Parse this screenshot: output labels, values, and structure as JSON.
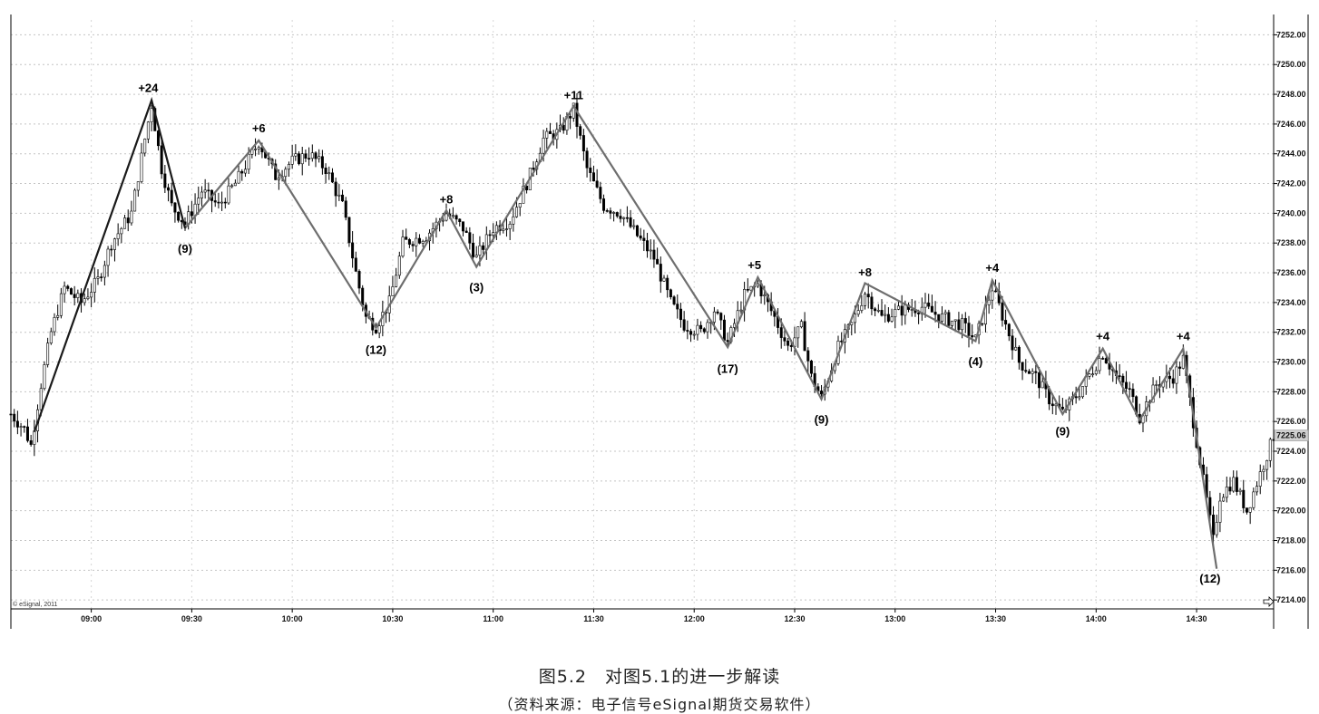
{
  "chart_data": {
    "type": "candlestick",
    "watermark": "© eSignal, 2011",
    "ylim": [
      7213.4,
      7253.0
    ],
    "y_ticks": [
      "7252.00",
      "7250.00",
      "7248.00",
      "7246.00",
      "7244.00",
      "7242.00",
      "7240.00",
      "7238.00",
      "7236.00",
      "7234.00",
      "7232.00",
      "7230.00",
      "7228.00",
      "7226.00",
      "7224.00",
      "7222.00",
      "7220.00",
      "7218.00",
      "7216.00",
      "7214.00"
    ],
    "last_price": "7225.06",
    "x_ticks": [
      "09:00",
      "09:30",
      "10:00",
      "10:30",
      "11:00",
      "11:30",
      "12:00",
      "12:30",
      "13:00",
      "13:30",
      "14:00",
      "14:30"
    ],
    "session_start": "08:36",
    "session_end": "14:53",
    "zigzag_dark": [
      {
        "t": "08:43",
        "p": 7225.3
      },
      {
        "t": "09:18",
        "p": 7247.6
      },
      {
        "t": "09:28",
        "p": 7239.0
      }
    ],
    "zigzag_gray": [
      {
        "t": "09:28",
        "p": 7239.0
      },
      {
        "t": "09:50",
        "p": 7244.9
      },
      {
        "t": "10:25",
        "p": 7232.3
      },
      {
        "t": "10:46",
        "p": 7240.2
      },
      {
        "t": "10:55",
        "p": 7236.4
      },
      {
        "t": "11:24",
        "p": 7247.2
      },
      {
        "t": "12:10",
        "p": 7231.0
      },
      {
        "t": "12:19",
        "p": 7235.7
      },
      {
        "t": "12:38",
        "p": 7227.5
      },
      {
        "t": "12:51",
        "p": 7235.3
      },
      {
        "t": "13:24",
        "p": 7231.4
      },
      {
        "t": "13:29",
        "p": 7235.5
      },
      {
        "t": "13:50",
        "p": 7226.5
      },
      {
        "t": "14:02",
        "p": 7230.9
      },
      {
        "t": "14:13",
        "p": 7226.1
      },
      {
        "t": "14:26",
        "p": 7230.9
      },
      {
        "t": "14:36",
        "p": 7216.1
      }
    ],
    "wave_labels": [
      {
        "text": "+24",
        "t": "09:17",
        "p": 7248.4
      },
      {
        "text": "(9)",
        "t": "09:28",
        "p": 7237.6
      },
      {
        "text": "+6",
        "t": "09:50",
        "p": 7245.7
      },
      {
        "text": "(12)",
        "t": "10:25",
        "p": 7230.8
      },
      {
        "text": "+8",
        "t": "10:46",
        "p": 7240.9
      },
      {
        "text": "(3)",
        "t": "10:55",
        "p": 7235.0
      },
      {
        "text": "+11",
        "t": "11:24",
        "p": 7247.9
      },
      {
        "text": "(17)",
        "t": "12:10",
        "p": 7229.5
      },
      {
        "text": "+5",
        "t": "12:18",
        "p": 7236.5
      },
      {
        "text": "(9)",
        "t": "12:38",
        "p": 7226.1
      },
      {
        "text": "+8",
        "t": "12:51",
        "p": 7236.0
      },
      {
        "text": "(4)",
        "t": "13:24",
        "p": 7230.0
      },
      {
        "text": "+4",
        "t": "13:29",
        "p": 7236.3
      },
      {
        "text": "(9)",
        "t": "13:50",
        "p": 7225.3
      },
      {
        "text": "+4",
        "t": "14:02",
        "p": 7231.7
      },
      {
        "text": "+4",
        "t": "14:26",
        "p": 7231.7
      },
      {
        "text": "(12)",
        "t": "14:34",
        "p": 7215.4
      }
    ],
    "price_path": [
      {
        "t": "08:36",
        "p": 7226.5
      },
      {
        "t": "08:40",
        "p": 7225.5
      },
      {
        "t": "08:42",
        "p": 7224.4
      },
      {
        "t": "08:45",
        "p": 7228.5
      },
      {
        "t": "08:48",
        "p": 7232.0
      },
      {
        "t": "08:52",
        "p": 7235.0
      },
      {
        "t": "08:57",
        "p": 7234.0
      },
      {
        "t": "09:02",
        "p": 7235.5
      },
      {
        "t": "09:06",
        "p": 7238.0
      },
      {
        "t": "09:12",
        "p": 7240.0
      },
      {
        "t": "09:16",
        "p": 7245.0
      },
      {
        "t": "09:18",
        "p": 7247.3
      },
      {
        "t": "09:21",
        "p": 7243.0
      },
      {
        "t": "09:24",
        "p": 7240.5
      },
      {
        "t": "09:28",
        "p": 7239.3
      },
      {
        "t": "09:33",
        "p": 7241.5
      },
      {
        "t": "09:38",
        "p": 7240.5
      },
      {
        "t": "09:43",
        "p": 7242.0
      },
      {
        "t": "09:50",
        "p": 7244.8
      },
      {
        "t": "09:55",
        "p": 7242.5
      },
      {
        "t": "10:00",
        "p": 7243.5
      },
      {
        "t": "10:05",
        "p": 7244.0
      },
      {
        "t": "10:10",
        "p": 7243.0
      },
      {
        "t": "10:15",
        "p": 7240.5
      },
      {
        "t": "10:19",
        "p": 7236.0
      },
      {
        "t": "10:22",
        "p": 7233.0
      },
      {
        "t": "10:25",
        "p": 7232.4
      },
      {
        "t": "10:29",
        "p": 7234.0
      },
      {
        "t": "10:33",
        "p": 7238.0
      },
      {
        "t": "10:40",
        "p": 7238.5
      },
      {
        "t": "10:46",
        "p": 7240.0
      },
      {
        "t": "10:51",
        "p": 7239.0
      },
      {
        "t": "10:55",
        "p": 7237.0
      },
      {
        "t": "11:00",
        "p": 7239.0
      },
      {
        "t": "11:05",
        "p": 7239.5
      },
      {
        "t": "11:10",
        "p": 7242.0
      },
      {
        "t": "11:15",
        "p": 7245.0
      },
      {
        "t": "11:20",
        "p": 7245.5
      },
      {
        "t": "11:24",
        "p": 7247.0
      },
      {
        "t": "11:28",
        "p": 7243.0
      },
      {
        "t": "11:33",
        "p": 7240.5
      },
      {
        "t": "11:38",
        "p": 7240.0
      },
      {
        "t": "11:43",
        "p": 7238.5
      },
      {
        "t": "11:48",
        "p": 7237.0
      },
      {
        "t": "11:53",
        "p": 7234.0
      },
      {
        "t": "11:57",
        "p": 7232.5
      },
      {
        "t": "12:02",
        "p": 7232.0
      },
      {
        "t": "12:06",
        "p": 7233.5
      },
      {
        "t": "12:10",
        "p": 7231.3
      },
      {
        "t": "12:15",
        "p": 7234.5
      },
      {
        "t": "12:19",
        "p": 7235.2
      },
      {
        "t": "12:24",
        "p": 7233.0
      },
      {
        "t": "12:28",
        "p": 7231.0
      },
      {
        "t": "12:32",
        "p": 7232.3
      },
      {
        "t": "12:35",
        "p": 7229.0
      },
      {
        "t": "12:38",
        "p": 7227.6
      },
      {
        "t": "12:43",
        "p": 7231.0
      },
      {
        "t": "12:47",
        "p": 7232.5
      },
      {
        "t": "12:51",
        "p": 7234.7
      },
      {
        "t": "12:56",
        "p": 7233.0
      },
      {
        "t": "13:02",
        "p": 7233.5
      },
      {
        "t": "13:08",
        "p": 7233.7
      },
      {
        "t": "13:14",
        "p": 7233.0
      },
      {
        "t": "13:20",
        "p": 7232.5
      },
      {
        "t": "13:24",
        "p": 7231.5
      },
      {
        "t": "13:29",
        "p": 7235.0
      },
      {
        "t": "13:33",
        "p": 7232.5
      },
      {
        "t": "13:37",
        "p": 7230.0
      },
      {
        "t": "13:42",
        "p": 7229.0
      },
      {
        "t": "13:46",
        "p": 7227.5
      },
      {
        "t": "13:50",
        "p": 7226.6
      },
      {
        "t": "13:55",
        "p": 7228.0
      },
      {
        "t": "14:02",
        "p": 7230.6
      },
      {
        "t": "14:06",
        "p": 7229.0
      },
      {
        "t": "14:10",
        "p": 7228.0
      },
      {
        "t": "14:13",
        "p": 7226.3
      },
      {
        "t": "14:18",
        "p": 7228.5
      },
      {
        "t": "14:23",
        "p": 7229.0
      },
      {
        "t": "14:26",
        "p": 7230.2
      },
      {
        "t": "14:29",
        "p": 7226.0
      },
      {
        "t": "14:32",
        "p": 7222.0
      },
      {
        "t": "14:35",
        "p": 7218.0
      },
      {
        "t": "14:37",
        "p": 7221.0
      },
      {
        "t": "14:41",
        "p": 7222.0
      },
      {
        "t": "14:45",
        "p": 7220.0
      },
      {
        "t": "14:49",
        "p": 7222.5
      },
      {
        "t": "14:53",
        "p": 7225.0
      }
    ]
  },
  "caption": {
    "title": "图5.2　对图5.1的进一步解读",
    "source": "（资料来源：电子信号eSignal期货交易软件）"
  }
}
